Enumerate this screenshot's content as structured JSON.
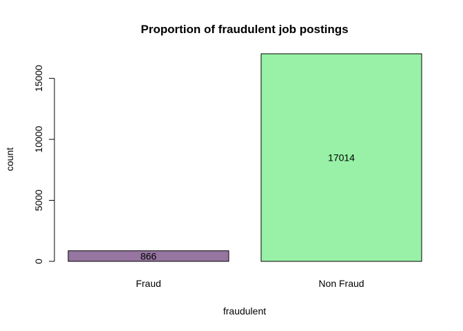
{
  "chart_data": {
    "type": "bar",
    "title": "Proportion of fraudulent job postings",
    "xlabel": "fraudulent",
    "ylabel": "count",
    "categories": [
      "Fraud",
      "Non Fraud"
    ],
    "values": [
      866,
      17014
    ],
    "data_labels": [
      "866",
      "17014"
    ],
    "bar_colors": [
      "#9675a1",
      "#98f1a6"
    ],
    "yticks": [
      0,
      5000,
      10000,
      15000
    ],
    "ytick_labels": [
      "0",
      "5000",
      "10000",
      "15000"
    ],
    "ylim": [
      0,
      17014
    ],
    "grid": false,
    "legend": "none"
  }
}
